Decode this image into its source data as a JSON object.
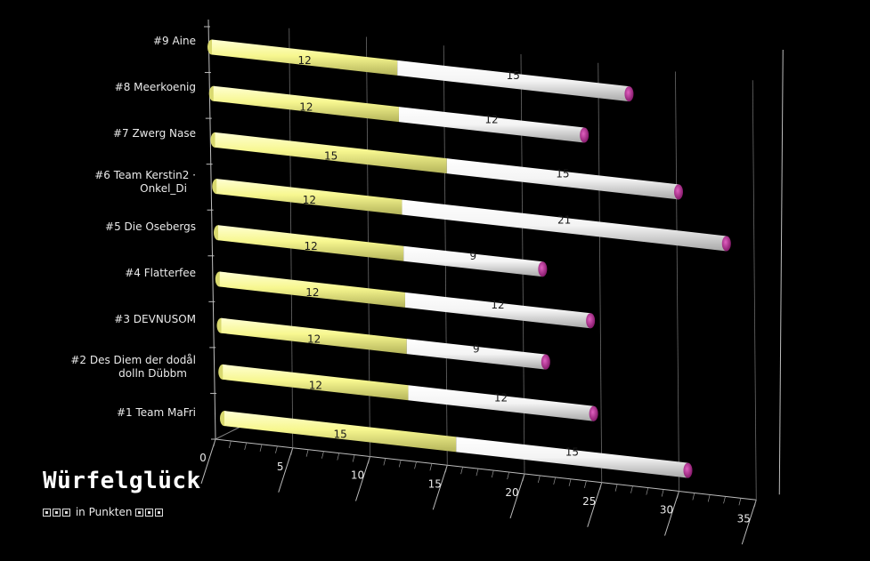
{
  "chart_data": {
    "type": "bar",
    "orientation": "horizontal",
    "stacked": true,
    "categories": [
      "#9 Aine",
      "#8 Meerkoenig",
      "#7 Zwerg Nase",
      "#6 Team Kerstin2 · Onkel_Di",
      "#5 Die Osebergs",
      "#4 Flatterfee",
      "#3 DEVNUSOM",
      "#2 Des Diem der dodål dolln Dübbm",
      "#1 Team MaFri"
    ],
    "category_lines": [
      [
        "#9 Aine"
      ],
      [
        "#8 Meerkoenig"
      ],
      [
        "#7 Zwerg Nase"
      ],
      [
        "#6 Team Kerstin2 ·",
        "Onkel_Di"
      ],
      [
        "#5 Die Osebergs"
      ],
      [
        "#4 Flatterfee"
      ],
      [
        "#3 DEVNUSOM"
      ],
      [
        "#2 Des Diem der dodål",
        "dolln Dübbm"
      ],
      [
        "#1 Team MaFri"
      ]
    ],
    "series": [
      {
        "values": [
          12,
          12,
          15,
          12,
          12,
          12,
          12,
          12,
          15
        ],
        "color": "#f5f58c"
      },
      {
        "values": [
          15,
          12,
          15,
          21,
          9,
          12,
          9,
          12,
          15
        ],
        "color": "#ffffff"
      }
    ],
    "xlim": [
      0,
      35
    ],
    "xticks": [
      0,
      5,
      10,
      15,
      20,
      25,
      30,
      35
    ],
    "grid": true,
    "background": "#000000",
    "end_cap_color": "#b0208c"
  },
  "branding": {
    "title": "Würfelglück",
    "subtitle": "in Punkten"
  }
}
